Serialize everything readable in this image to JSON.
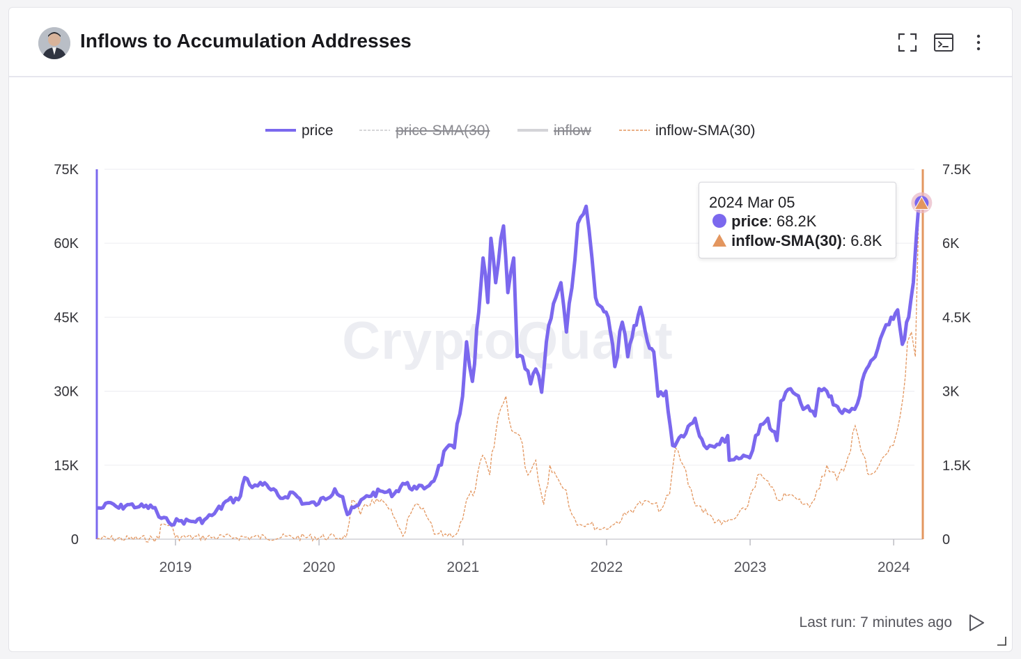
{
  "header": {
    "title": "Inflows to Accumulation Addresses",
    "icons": [
      "avatar",
      "expand-icon",
      "terminal-icon",
      "more-vertical-icon"
    ]
  },
  "colors": {
    "price": "#7b68ee",
    "inflow_sma": "#e3965f",
    "inflow": "#d4d4d8",
    "price_sma": "#c8c8cc",
    "grid": "#efeff3"
  },
  "chart_data": {
    "type": "line",
    "title": "",
    "watermark": "CryptoQuant",
    "legend": {
      "placement": "top-center",
      "entries": [
        {
          "name": "price",
          "active": true,
          "style": "solid"
        },
        {
          "name": "price-SMA(30)",
          "active": false,
          "style": "dashed"
        },
        {
          "name": "inflow",
          "active": false,
          "style": "solid"
        },
        {
          "name": "inflow-SMA(30)",
          "active": true,
          "style": "dashed"
        }
      ]
    },
    "x_ticks": [
      "2019",
      "2020",
      "2021",
      "2022",
      "2023",
      "2024"
    ],
    "x_range": [
      "2018-06-15",
      "2024-03-15"
    ],
    "y_left": {
      "ticks": [
        "0",
        "15K",
        "30K",
        "45K",
        "60K",
        "75K"
      ],
      "range": [
        0,
        75000
      ]
    },
    "y_right": {
      "ticks": [
        "0",
        "1.5K",
        "3K",
        "4.5K",
        "6K",
        "7.5K"
      ],
      "range": [
        0,
        7500
      ]
    },
    "grid": true,
    "series": [
      {
        "name": "price",
        "axis": "left",
        "points": [
          [
            "2018-06-15",
            6300
          ],
          [
            "2018-07-01",
            6400
          ],
          [
            "2018-07-20",
            7400
          ],
          [
            "2018-08-10",
            6300
          ],
          [
            "2018-09-01",
            7000
          ],
          [
            "2018-10-01",
            6600
          ],
          [
            "2018-11-10",
            6400
          ],
          [
            "2018-11-20",
            4500
          ],
          [
            "2018-12-15",
            3400
          ],
          [
            "2019-01-10",
            3700
          ],
          [
            "2019-02-10",
            3600
          ],
          [
            "2019-03-15",
            3900
          ],
          [
            "2019-04-10",
            5200
          ],
          [
            "2019-05-15",
            7900
          ],
          [
            "2019-06-10",
            8000
          ],
          [
            "2019-06-26",
            12500
          ],
          [
            "2019-07-15",
            10500
          ],
          [
            "2019-08-05",
            11500
          ],
          [
            "2019-09-01",
            10000
          ],
          [
            "2019-09-25",
            8300
          ],
          [
            "2019-10-26",
            9500
          ],
          [
            "2019-11-25",
            7200
          ],
          [
            "2019-12-31",
            7200
          ],
          [
            "2020-02-10",
            10200
          ],
          [
            "2020-03-01",
            8600
          ],
          [
            "2020-03-13",
            5000
          ],
          [
            "2020-04-10",
            6900
          ],
          [
            "2020-05-01",
            8800
          ],
          [
            "2020-06-10",
            9700
          ],
          [
            "2020-07-10",
            9200
          ],
          [
            "2020-08-01",
            11300
          ],
          [
            "2020-09-05",
            10200
          ],
          [
            "2020-10-01",
            10600
          ],
          [
            "2020-10-25",
            13000
          ],
          [
            "2020-11-20",
            18500
          ],
          [
            "2020-12-10",
            18500
          ],
          [
            "2020-12-31",
            29000
          ],
          [
            "2021-01-10",
            40000
          ],
          [
            "2021-01-25",
            32000
          ],
          [
            "2021-02-10",
            46000
          ],
          [
            "2021-02-21",
            57000
          ],
          [
            "2021-03-05",
            48000
          ],
          [
            "2021-03-13",
            61000
          ],
          [
            "2021-03-25",
            52000
          ],
          [
            "2021-04-14",
            63500
          ],
          [
            "2021-04-25",
            50000
          ],
          [
            "2021-05-10",
            57000
          ],
          [
            "2021-05-19",
            37000
          ],
          [
            "2021-06-01",
            37000
          ],
          [
            "2021-06-22",
            31500
          ],
          [
            "2021-07-05",
            34500
          ],
          [
            "2021-07-20",
            29800
          ],
          [
            "2021-08-01",
            40000
          ],
          [
            "2021-08-25",
            49000
          ],
          [
            "2021-09-07",
            52000
          ],
          [
            "2021-09-21",
            42000
          ],
          [
            "2021-10-05",
            51000
          ],
          [
            "2021-10-20",
            64000
          ],
          [
            "2021-11-10",
            67500
          ],
          [
            "2021-11-25",
            57000
          ],
          [
            "2021-12-04",
            49000
          ],
          [
            "2021-12-20",
            47000
          ],
          [
            "2022-01-05",
            45000
          ],
          [
            "2022-01-22",
            35000
          ],
          [
            "2022-02-10",
            44000
          ],
          [
            "2022-02-24",
            37000
          ],
          [
            "2022-03-28",
            47000
          ],
          [
            "2022-04-15",
            40000
          ],
          [
            "2022-05-01",
            38000
          ],
          [
            "2022-05-12",
            29000
          ],
          [
            "2022-06-01",
            30000
          ],
          [
            "2022-06-18",
            19000
          ],
          [
            "2022-07-10",
            21000
          ],
          [
            "2022-08-14",
            24500
          ],
          [
            "2022-09-06",
            19000
          ],
          [
            "2022-09-20",
            19000
          ],
          [
            "2022-10-15",
            19200
          ],
          [
            "2022-11-05",
            21000
          ],
          [
            "2022-11-09",
            16000
          ],
          [
            "2022-12-15",
            17000
          ],
          [
            "2022-12-31",
            16500
          ],
          [
            "2023-01-15",
            21000
          ],
          [
            "2023-02-15",
            24500
          ],
          [
            "2023-03-10",
            20000
          ],
          [
            "2023-03-20",
            28000
          ],
          [
            "2023-04-14",
            30500
          ],
          [
            "2023-05-10",
            27500
          ],
          [
            "2023-06-15",
            25000
          ],
          [
            "2023-06-25",
            30500
          ],
          [
            "2023-07-15",
            30000
          ],
          [
            "2023-08-17",
            26000
          ],
          [
            "2023-09-10",
            25800
          ],
          [
            "2023-10-01",
            27500
          ],
          [
            "2023-10-24",
            34500
          ],
          [
            "2023-11-15",
            37000
          ],
          [
            "2023-12-05",
            42000
          ],
          [
            "2023-12-20",
            43500
          ],
          [
            "2024-01-11",
            46500
          ],
          [
            "2024-01-23",
            39500
          ],
          [
            "2024-02-08",
            45000
          ],
          [
            "2024-02-20",
            52000
          ],
          [
            "2024-02-28",
            62000
          ],
          [
            "2024-03-05",
            68200
          ]
        ]
      },
      {
        "name": "inflow-SMA(30)",
        "axis": "right",
        "points": [
          [
            "2018-06-15",
            10
          ],
          [
            "2018-11-20",
            10
          ],
          [
            "2018-11-25",
            300
          ],
          [
            "2018-12-20",
            300
          ],
          [
            "2018-12-31",
            40
          ],
          [
            "2019-06-01",
            40
          ],
          [
            "2020-03-10",
            40
          ],
          [
            "2020-03-25",
            800
          ],
          [
            "2020-04-15",
            500
          ],
          [
            "2020-05-15",
            800
          ],
          [
            "2020-06-20",
            700
          ],
          [
            "2020-07-20",
            250
          ],
          [
            "2020-08-01",
            60
          ],
          [
            "2020-08-20",
            500
          ],
          [
            "2020-09-10",
            700
          ],
          [
            "2020-10-05",
            400
          ],
          [
            "2020-10-20",
            100
          ],
          [
            "2020-12-15",
            100
          ],
          [
            "2020-12-31",
            400
          ],
          [
            "2021-01-10",
            800
          ],
          [
            "2021-02-01",
            1000
          ],
          [
            "2021-02-20",
            1700
          ],
          [
            "2021-03-10",
            1300
          ],
          [
            "2021-04-01",
            2500
          ],
          [
            "2021-04-20",
            2900
          ],
          [
            "2021-05-05",
            2200
          ],
          [
            "2021-05-25",
            2100
          ],
          [
            "2021-06-15",
            1300
          ],
          [
            "2021-07-05",
            1600
          ],
          [
            "2021-07-25",
            700
          ],
          [
            "2021-08-10",
            1500
          ],
          [
            "2021-09-01",
            1200
          ],
          [
            "2021-09-20",
            1000
          ],
          [
            "2021-10-05",
            500
          ],
          [
            "2021-10-25",
            300
          ],
          [
            "2021-11-20",
            300
          ],
          [
            "2021-12-20",
            200
          ],
          [
            "2022-01-20",
            300
          ],
          [
            "2022-02-20",
            500
          ],
          [
            "2022-03-20",
            700
          ],
          [
            "2022-04-20",
            750
          ],
          [
            "2022-05-20",
            600
          ],
          [
            "2022-06-10",
            900
          ],
          [
            "2022-06-25",
            1850
          ],
          [
            "2022-07-15",
            1500
          ],
          [
            "2022-08-10",
            800
          ],
          [
            "2022-09-15",
            500
          ],
          [
            "2022-10-20",
            300
          ],
          [
            "2022-11-20",
            400
          ],
          [
            "2022-12-20",
            600
          ],
          [
            "2023-01-20",
            1300
          ],
          [
            "2023-02-10",
            1200
          ],
          [
            "2023-03-10",
            800
          ],
          [
            "2023-04-10",
            900
          ],
          [
            "2023-05-01",
            800
          ],
          [
            "2023-06-01",
            650
          ],
          [
            "2023-06-20",
            1000
          ],
          [
            "2023-07-15",
            1500
          ],
          [
            "2023-08-10",
            1200
          ],
          [
            "2023-09-01",
            1500
          ],
          [
            "2023-09-25",
            2300
          ],
          [
            "2023-10-10",
            1800
          ],
          [
            "2023-11-01",
            1300
          ],
          [
            "2023-11-25",
            1500
          ],
          [
            "2023-12-10",
            1700
          ],
          [
            "2023-12-31",
            1900
          ],
          [
            "2024-01-10",
            2200
          ],
          [
            "2024-01-25",
            2900
          ],
          [
            "2024-02-05",
            4000
          ],
          [
            "2024-02-15",
            4200
          ],
          [
            "2024-02-25",
            3700
          ],
          [
            "2024-03-05",
            6800
          ]
        ]
      }
    ],
    "tooltip": {
      "date": "2024 Mar 05",
      "rows": [
        {
          "name": "price",
          "value": "68.2K"
        },
        {
          "name": "inflow-SMA(30)",
          "value": "6.8K"
        }
      ]
    }
  },
  "footer": {
    "last_run": "Last run: 7 minutes ago"
  }
}
